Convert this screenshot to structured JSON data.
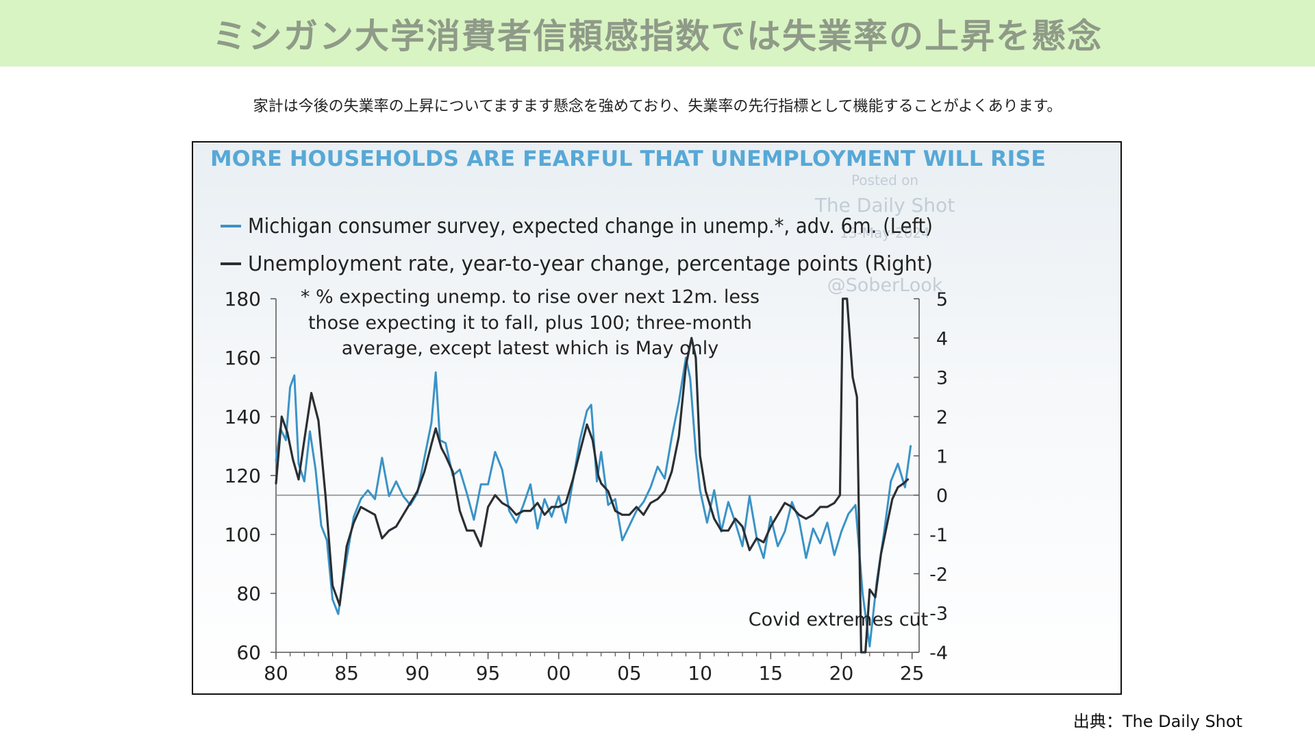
{
  "page": {
    "banner_title": "ミシガン大学消費者信頼感指数では失業率の上昇を懸念",
    "subtitle": "家計は今後の失業率の上昇についてますます懸念を強めており、失業率の先行指標として機能することがよくあります。",
    "source": "出典：The Daily Shot",
    "banner_color": "#d8f4c2"
  },
  "chart_data": {
    "type": "line",
    "title": "MORE HOUSEHOLDS ARE FEARFUL THAT UNEMPLOYMENT WILL RISE",
    "watermark": [
      "Posted on",
      "The Daily Shot",
      "13-May-2024",
      "@SoberLook"
    ],
    "footnote": [
      "* % expecting unemp. to rise over next 12m. less",
      "those expecting it to fall, plus 100; three-month",
      "average, except latest which is May only"
    ],
    "annotation": "Covid extremes cut",
    "x_tick_labels": [
      "80",
      "85",
      "90",
      "95",
      "00",
      "05",
      "10",
      "15",
      "20",
      "25"
    ],
    "x_ticks": [
      1980,
      1985,
      1990,
      1995,
      2000,
      2005,
      2010,
      2015,
      2020,
      2025
    ],
    "xlim": [
      1980,
      2025.5
    ],
    "y_left": {
      "lim": [
        60,
        180
      ],
      "ticks": [
        60,
        80,
        100,
        120,
        140,
        160,
        180
      ]
    },
    "y_right": {
      "lim": [
        -4,
        5
      ],
      "ticks": [
        -4,
        -3,
        -2,
        -1,
        0,
        1,
        2,
        3,
        4,
        5
      ]
    },
    "zero_line_right": 0,
    "series": [
      {
        "name": "Michigan consumer survey, expected change in unemp.*, adv. 6m. (Left)",
        "axis": "left",
        "color": "#3a93c6",
        "points": [
          [
            1980,
            125
          ],
          [
            1980.3,
            136
          ],
          [
            1980.7,
            132
          ],
          [
            1981,
            150
          ],
          [
            1981.3,
            154
          ],
          [
            1981.6,
            124
          ],
          [
            1982,
            118
          ],
          [
            1982.4,
            135
          ],
          [
            1982.8,
            122
          ],
          [
            1983.2,
            103
          ],
          [
            1983.6,
            98
          ],
          [
            1984,
            78
          ],
          [
            1984.4,
            73
          ],
          [
            1984.8,
            86
          ],
          [
            1985,
            92
          ],
          [
            1985.5,
            106
          ],
          [
            1986,
            112
          ],
          [
            1986.5,
            115
          ],
          [
            1987,
            112
          ],
          [
            1987.5,
            126
          ],
          [
            1988,
            113
          ],
          [
            1988.5,
            118
          ],
          [
            1989,
            113
          ],
          [
            1989.5,
            110
          ],
          [
            1990,
            114
          ],
          [
            1990.5,
            126
          ],
          [
            1991,
            138
          ],
          [
            1991.3,
            155
          ],
          [
            1991.6,
            132
          ],
          [
            1992,
            131
          ],
          [
            1992.5,
            120
          ],
          [
            1993,
            122
          ],
          [
            1993.5,
            114
          ],
          [
            1994,
            105
          ],
          [
            1994.5,
            117
          ],
          [
            1995,
            117
          ],
          [
            1995.5,
            128
          ],
          [
            1996,
            122
          ],
          [
            1996.5,
            108
          ],
          [
            1997,
            104
          ],
          [
            1997.5,
            110
          ],
          [
            1998,
            117
          ],
          [
            1998.5,
            102
          ],
          [
            1999,
            112
          ],
          [
            1999.5,
            106
          ],
          [
            2000,
            113
          ],
          [
            2000.5,
            104
          ],
          [
            2001,
            118
          ],
          [
            2001.5,
            132
          ],
          [
            2002,
            142
          ],
          [
            2002.3,
            144
          ],
          [
            2002.7,
            118
          ],
          [
            2003,
            128
          ],
          [
            2003.5,
            110
          ],
          [
            2004,
            112
          ],
          [
            2004.5,
            98
          ],
          [
            2005,
            103
          ],
          [
            2005.5,
            108
          ],
          [
            2006,
            111
          ],
          [
            2006.5,
            116
          ],
          [
            2007,
            123
          ],
          [
            2007.5,
            119
          ],
          [
            2008,
            133
          ],
          [
            2008.5,
            145
          ],
          [
            2009,
            160
          ],
          [
            2009.3,
            153
          ],
          [
            2009.7,
            128
          ],
          [
            2010,
            115
          ],
          [
            2010.5,
            104
          ],
          [
            2011,
            115
          ],
          [
            2011.5,
            101
          ],
          [
            2012,
            111
          ],
          [
            2012.5,
            104
          ],
          [
            2013,
            96
          ],
          [
            2013.5,
            113
          ],
          [
            2014,
            99
          ],
          [
            2014.5,
            92
          ],
          [
            2015,
            106
          ],
          [
            2015.5,
            96
          ],
          [
            2016,
            101
          ],
          [
            2016.5,
            111
          ],
          [
            2017,
            105
          ],
          [
            2017.5,
            92
          ],
          [
            2018,
            102
          ],
          [
            2018.5,
            97
          ],
          [
            2019,
            104
          ],
          [
            2019.5,
            93
          ],
          [
            2020,
            101
          ],
          [
            2020.5,
            107
          ],
          [
            2021,
            110
          ],
          [
            2021.5,
            80
          ],
          [
            2022,
            62
          ],
          [
            2022.5,
            84
          ],
          [
            2023,
            100
          ],
          [
            2023.5,
            118
          ],
          [
            2024,
            124
          ],
          [
            2024.5,
            116
          ],
          [
            2024.9,
            130
          ]
        ]
      },
      {
        "name": "Unemployment rate, year-to-year change, percentage points (Right)",
        "axis": "right",
        "color": "#2a2f33",
        "points": [
          [
            1980,
            0.3
          ],
          [
            1980.4,
            2
          ],
          [
            1980.8,
            1.6
          ],
          [
            1981.2,
            0.9
          ],
          [
            1981.6,
            0.4
          ],
          [
            1982,
            1.4
          ],
          [
            1982.5,
            2.6
          ],
          [
            1983,
            1.9
          ],
          [
            1983.5,
            0
          ],
          [
            1984,
            -2.3
          ],
          [
            1984.5,
            -2.8
          ],
          [
            1985,
            -1.3
          ],
          [
            1985.5,
            -0.7
          ],
          [
            1986,
            -0.3
          ],
          [
            1986.5,
            -0.4
          ],
          [
            1987,
            -0.5
          ],
          [
            1987.5,
            -1.1
          ],
          [
            1988,
            -0.9
          ],
          [
            1988.5,
            -0.8
          ],
          [
            1989,
            -0.5
          ],
          [
            1989.5,
            -0.2
          ],
          [
            1990,
            0.1
          ],
          [
            1990.5,
            0.6
          ],
          [
            1991,
            1.3
          ],
          [
            1991.3,
            1.7
          ],
          [
            1991.7,
            1.2
          ],
          [
            1992,
            1
          ],
          [
            1992.5,
            0.6
          ],
          [
            1993,
            -0.4
          ],
          [
            1993.5,
            -0.9
          ],
          [
            1994,
            -0.9
          ],
          [
            1994.5,
            -1.3
          ],
          [
            1995,
            -0.3
          ],
          [
            1995.5,
            0
          ],
          [
            1996,
            -0.2
          ],
          [
            1996.5,
            -0.3
          ],
          [
            1997,
            -0.5
          ],
          [
            1997.5,
            -0.4
          ],
          [
            1998,
            -0.4
          ],
          [
            1998.5,
            -0.2
          ],
          [
            1999,
            -0.5
          ],
          [
            1999.5,
            -0.3
          ],
          [
            2000,
            -0.3
          ],
          [
            2000.5,
            -0.2
          ],
          [
            2001,
            0.4
          ],
          [
            2001.5,
            1.1
          ],
          [
            2002,
            1.8
          ],
          [
            2002.4,
            1.4
          ],
          [
            2002.8,
            0.5
          ],
          [
            2003,
            0.3
          ],
          [
            2003.5,
            0.1
          ],
          [
            2004,
            -0.4
          ],
          [
            2004.5,
            -0.5
          ],
          [
            2005,
            -0.5
          ],
          [
            2005.5,
            -0.3
          ],
          [
            2006,
            -0.5
          ],
          [
            2006.5,
            -0.2
          ],
          [
            2007,
            -0.1
          ],
          [
            2007.5,
            0.1
          ],
          [
            2008,
            0.6
          ],
          [
            2008.5,
            1.5
          ],
          [
            2009,
            3.3
          ],
          [
            2009.4,
            4
          ],
          [
            2009.7,
            3.5
          ],
          [
            2010,
            1
          ],
          [
            2010.4,
            0.1
          ],
          [
            2011,
            -0.6
          ],
          [
            2011.5,
            -0.9
          ],
          [
            2012,
            -0.9
          ],
          [
            2012.5,
            -0.6
          ],
          [
            2013,
            -0.8
          ],
          [
            2013.5,
            -1.4
          ],
          [
            2014,
            -1.1
          ],
          [
            2014.5,
            -1.2
          ],
          [
            2015,
            -0.8
          ],
          [
            2015.5,
            -0.5
          ],
          [
            2016,
            -0.2
          ],
          [
            2016.5,
            -0.3
          ],
          [
            2017,
            -0.5
          ],
          [
            2017.5,
            -0.6
          ],
          [
            2018,
            -0.5
          ],
          [
            2018.5,
            -0.3
          ],
          [
            2019,
            -0.3
          ],
          [
            2019.5,
            -0.2
          ],
          [
            2019.9,
            0
          ],
          [
            2020.1,
            5
          ],
          [
            2020.4,
            5
          ],
          [
            2020.8,
            3
          ],
          [
            2021.1,
            2.5
          ],
          [
            2021.4,
            -4
          ],
          [
            2021.7,
            -4
          ],
          [
            2022,
            -2.4
          ],
          [
            2022.4,
            -2.6
          ],
          [
            2022.8,
            -1.5
          ],
          [
            2023.2,
            -0.8
          ],
          [
            2023.6,
            -0.1
          ],
          [
            2024,
            0.2
          ],
          [
            2024.4,
            0.3
          ],
          [
            2024.7,
            0.4
          ]
        ]
      }
    ]
  }
}
